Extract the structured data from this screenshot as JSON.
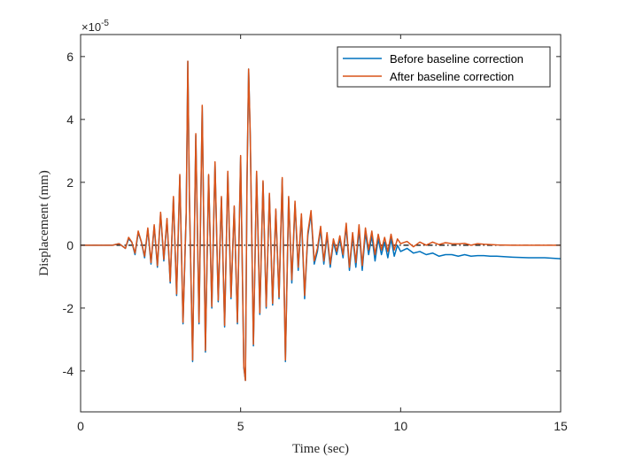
{
  "chart_data": {
    "type": "line",
    "xlabel": "Time (sec)",
    "ylabel": "Displacement (mm)",
    "xlim": [
      0,
      15
    ],
    "ylim": [
      -5.3,
      6.7
    ],
    "y_scale_exponent": {
      "base": "×10",
      "power": "-5"
    },
    "grid": false,
    "legend_position": "top-right",
    "x_ticks": [
      {
        "value": 0,
        "label": "0"
      },
      {
        "value": 5,
        "label": "5"
      },
      {
        "value": 10,
        "label": "10"
      },
      {
        "value": 15,
        "label": "15"
      }
    ],
    "y_ticks": [
      {
        "value": 6,
        "label": "6"
      },
      {
        "value": 4,
        "label": "4"
      },
      {
        "value": 2,
        "label": "2"
      },
      {
        "value": 0,
        "label": "0"
      },
      {
        "value": -2,
        "label": "-2"
      },
      {
        "value": -4,
        "label": "-4"
      }
    ],
    "zero_line": {
      "y": 0,
      "color": "#000000",
      "style": "dash-dot"
    },
    "series": [
      {
        "name": "Before baseline correction",
        "color": "#0072BD",
        "x": [
          0,
          1.0,
          1.2,
          1.4,
          1.5,
          1.6,
          1.7,
          1.8,
          1.9,
          2.0,
          2.1,
          2.2,
          2.3,
          2.4,
          2.5,
          2.6,
          2.7,
          2.8,
          2.9,
          3.0,
          3.1,
          3.2,
          3.3,
          3.35,
          3.4,
          3.5,
          3.6,
          3.7,
          3.8,
          3.9,
          4.0,
          4.1,
          4.2,
          4.3,
          4.4,
          4.5,
          4.6,
          4.7,
          4.8,
          4.9,
          5.0,
          5.1,
          5.15,
          5.2,
          5.25,
          5.3,
          5.4,
          5.5,
          5.6,
          5.7,
          5.8,
          5.9,
          6.0,
          6.1,
          6.2,
          6.3,
          6.4,
          6.5,
          6.6,
          6.7,
          6.8,
          6.9,
          7.0,
          7.1,
          7.2,
          7.3,
          7.4,
          7.5,
          7.6,
          7.7,
          7.8,
          7.9,
          8.0,
          8.1,
          8.2,
          8.3,
          8.4,
          8.5,
          8.6,
          8.7,
          8.8,
          8.9,
          9.0,
          9.1,
          9.2,
          9.3,
          9.4,
          9.5,
          9.6,
          9.7,
          9.8,
          9.9,
          10.0,
          10.2,
          10.4,
          10.6,
          10.8,
          11.0,
          11.2,
          11.4,
          11.6,
          11.8,
          12.0,
          12.2,
          12.4,
          12.6,
          12.8,
          13.0,
          13.5,
          14.0,
          14.5,
          15.0
        ],
        "y": [
          0,
          0,
          0.05,
          -0.1,
          0.2,
          0.1,
          -0.3,
          0.4,
          0.1,
          -0.4,
          0.5,
          -0.6,
          0.6,
          -0.7,
          1.0,
          -0.5,
          0.8,
          -1.2,
          1.5,
          -1.6,
          2.2,
          -2.5,
          1.0,
          5.85,
          1.5,
          -3.7,
          3.5,
          -2.5,
          4.4,
          -3.4,
          2.2,
          -2.0,
          2.6,
          -1.8,
          1.5,
          -2.6,
          2.3,
          -1.7,
          1.2,
          -2.5,
          2.8,
          -3.9,
          -4.3,
          2.0,
          5.6,
          3.5,
          -3.2,
          2.3,
          -2.2,
          2.0,
          -2.0,
          1.6,
          -1.9,
          1.1,
          -1.7,
          2.1,
          -3.7,
          1.5,
          -1.2,
          1.3,
          -0.8,
          0.9,
          -1.7,
          0.3,
          1.0,
          -0.6,
          -0.2,
          0.5,
          -0.6,
          0.3,
          -0.7,
          0.1,
          -0.3,
          0.2,
          -0.4,
          0.6,
          -0.8,
          0.3,
          -0.7,
          0.5,
          -0.8,
          0.4,
          -0.3,
          0.3,
          -0.5,
          0.2,
          -0.3,
          0.1,
          -0.4,
          0.2,
          -0.35,
          0.0,
          -0.2,
          -0.1,
          -0.25,
          -0.2,
          -0.3,
          -0.25,
          -0.35,
          -0.3,
          -0.3,
          -0.35,
          -0.3,
          -0.35,
          -0.33,
          -0.33,
          -0.35,
          -0.35,
          -0.38,
          -0.4,
          -0.4,
          -0.43
        ]
      },
      {
        "name": "After baseline correction",
        "color": "#D95319",
        "x": [
          0,
          1.0,
          1.2,
          1.4,
          1.5,
          1.6,
          1.7,
          1.8,
          1.9,
          2.0,
          2.1,
          2.2,
          2.3,
          2.4,
          2.5,
          2.6,
          2.7,
          2.8,
          2.9,
          3.0,
          3.1,
          3.2,
          3.3,
          3.35,
          3.4,
          3.5,
          3.6,
          3.7,
          3.8,
          3.9,
          4.0,
          4.1,
          4.2,
          4.3,
          4.4,
          4.5,
          4.6,
          4.7,
          4.8,
          4.9,
          5.0,
          5.1,
          5.15,
          5.2,
          5.25,
          5.3,
          5.4,
          5.5,
          5.6,
          5.7,
          5.8,
          5.9,
          6.0,
          6.1,
          6.2,
          6.3,
          6.4,
          6.5,
          6.6,
          6.7,
          6.8,
          6.9,
          7.0,
          7.1,
          7.2,
          7.3,
          7.4,
          7.5,
          7.6,
          7.7,
          7.8,
          7.9,
          8.0,
          8.1,
          8.2,
          8.3,
          8.4,
          8.5,
          8.6,
          8.7,
          8.8,
          8.9,
          9.0,
          9.1,
          9.2,
          9.3,
          9.4,
          9.5,
          9.6,
          9.7,
          9.8,
          9.9,
          10.0,
          10.2,
          10.4,
          10.6,
          10.8,
          11.0,
          11.2,
          11.4,
          11.6,
          11.8,
          12.0,
          12.2,
          12.4,
          12.6,
          12.8,
          13.0,
          13.5,
          14.0,
          14.5,
          15.0
        ],
        "y": [
          0,
          0,
          0.05,
          -0.1,
          0.25,
          0.1,
          -0.25,
          0.45,
          0.1,
          -0.35,
          0.55,
          -0.55,
          0.65,
          -0.65,
          1.05,
          -0.45,
          0.85,
          -1.15,
          1.55,
          -1.55,
          2.25,
          -2.45,
          1.05,
          5.85,
          1.55,
          -3.65,
          3.55,
          -2.45,
          4.45,
          -3.35,
          2.25,
          -1.95,
          2.65,
          -1.75,
          1.55,
          -2.55,
          2.35,
          -1.65,
          1.25,
          -2.45,
          2.85,
          -3.85,
          -4.3,
          2.05,
          5.6,
          3.55,
          -3.15,
          2.35,
          -2.15,
          2.05,
          -1.95,
          1.65,
          -1.85,
          1.15,
          -1.65,
          2.15,
          -3.65,
          1.55,
          -1.1,
          1.4,
          -0.7,
          1.0,
          -1.6,
          0.4,
          1.1,
          -0.5,
          -0.1,
          0.6,
          -0.5,
          0.4,
          -0.6,
          0.2,
          -0.2,
          0.3,
          -0.3,
          0.7,
          -0.7,
          0.4,
          -0.55,
          0.65,
          -0.65,
          0.55,
          -0.15,
          0.45,
          -0.3,
          0.35,
          -0.15,
          0.25,
          -0.2,
          0.35,
          -0.15,
          0.2,
          0.05,
          0.12,
          -0.05,
          0.1,
          0.0,
          0.1,
          0.02,
          0.08,
          0.05,
          0.04,
          0.06,
          0.0,
          0.05,
          0.03,
          0.02,
          0.01,
          0.0,
          0.0,
          0.0,
          0.0
        ]
      }
    ]
  }
}
